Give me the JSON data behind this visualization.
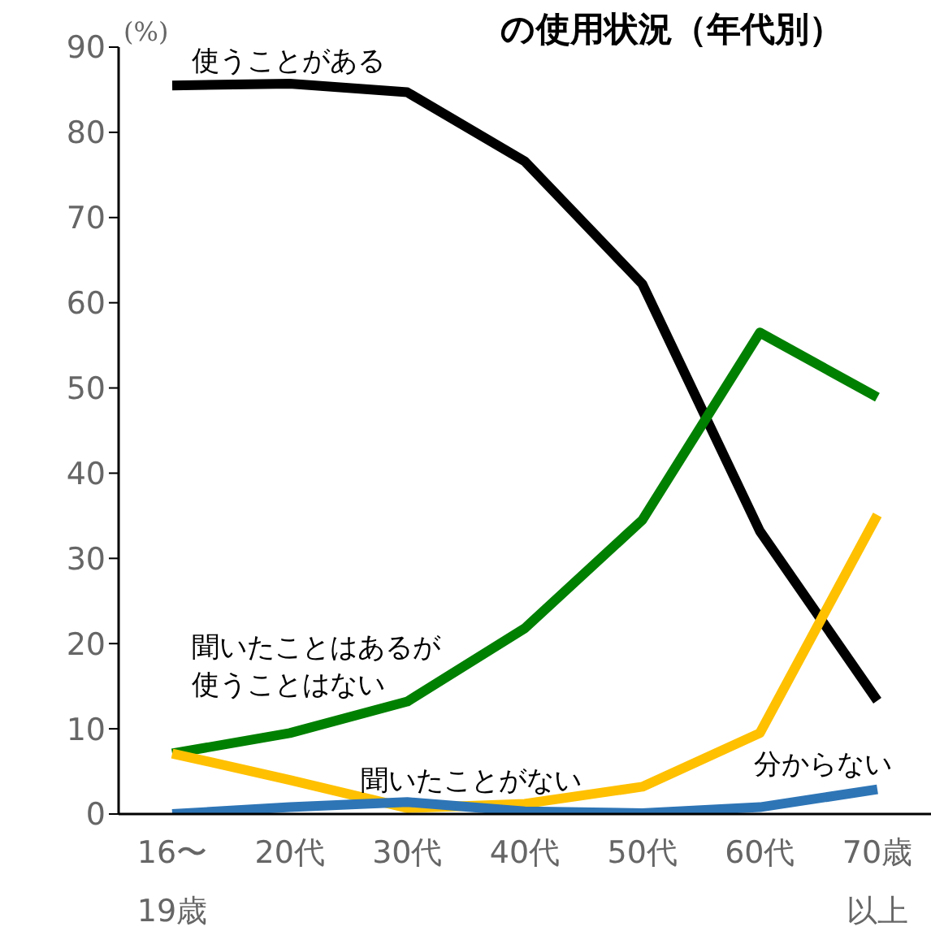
{
  "chart_data": {
    "type": "line",
    "title": "の使用状況（年代別）",
    "ylabel": "(%)",
    "categories": [
      "16〜19歳",
      "20代",
      "30代",
      "40代",
      "50代",
      "60代",
      "70歳以上"
    ],
    "series": [
      {
        "name": "使うことがある",
        "color": "#000000",
        "values": [
          85.5,
          85.7,
          84.7,
          76.6,
          62.2,
          33.2,
          13.3
        ]
      },
      {
        "name": "聞いたことはあるが使うことはない",
        "color": "#008000",
        "values": [
          7.1,
          9.5,
          13.2,
          21.8,
          34.5,
          56.5,
          48.9
        ]
      },
      {
        "name": "聞いたことがない",
        "color": "#ffc000",
        "values": [
          7.1,
          4.0,
          0.7,
          1.2,
          3.2,
          9.5,
          35.1
        ]
      },
      {
        "name": "分からない",
        "color": "#2e75b6",
        "values": [
          0.0,
          0.8,
          1.4,
          0.3,
          0.1,
          0.8,
          2.9
        ]
      }
    ],
    "ylim": [
      0,
      90
    ],
    "yticks": [
      0,
      10,
      20,
      30,
      40,
      50,
      60,
      70,
      80,
      90
    ],
    "grid": false,
    "legend": false,
    "marker": "none",
    "line_style": "solid"
  }
}
